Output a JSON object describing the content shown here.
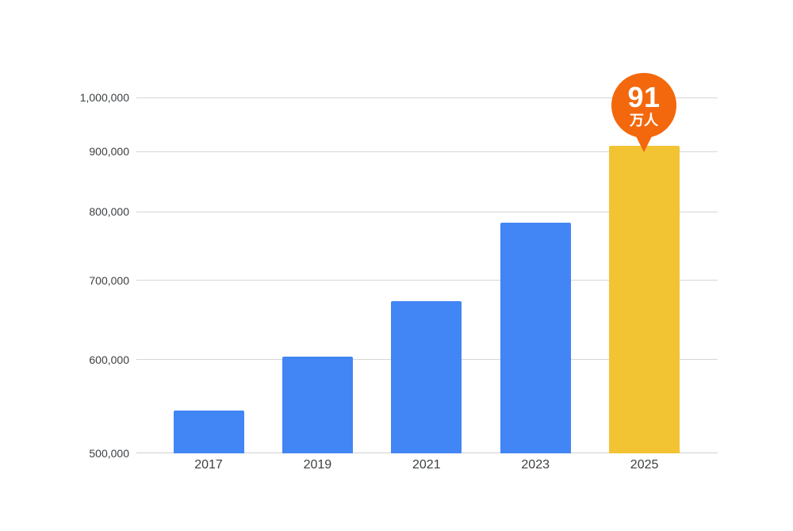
{
  "chart_data": {
    "type": "bar",
    "title": "",
    "xlabel": "",
    "ylabel": "",
    "categories": [
      "2017",
      "2019",
      "2021",
      "2023",
      "2025"
    ],
    "values": [
      543000,
      603000,
      672000,
      783000,
      910000
    ],
    "y_scale": "logarithmic",
    "ylim": [
      500000,
      1000000
    ],
    "y_ticks": [
      500000,
      600000,
      700000,
      800000,
      900000,
      1000000
    ],
    "y_tick_labels": [
      "500,000",
      "600,000",
      "700,000",
      "800,000",
      "900,000",
      "1,000,000"
    ],
    "grid": true,
    "legend": false,
    "bar_color_default": "#4285F4",
    "bar_color_highlight": "#F2C333",
    "highlight_index": 4,
    "annotation": {
      "value": "91",
      "unit": "万人",
      "bg_color": "#F3680D",
      "text_color": "#FFFFFF",
      "target_category": "2025"
    }
  }
}
